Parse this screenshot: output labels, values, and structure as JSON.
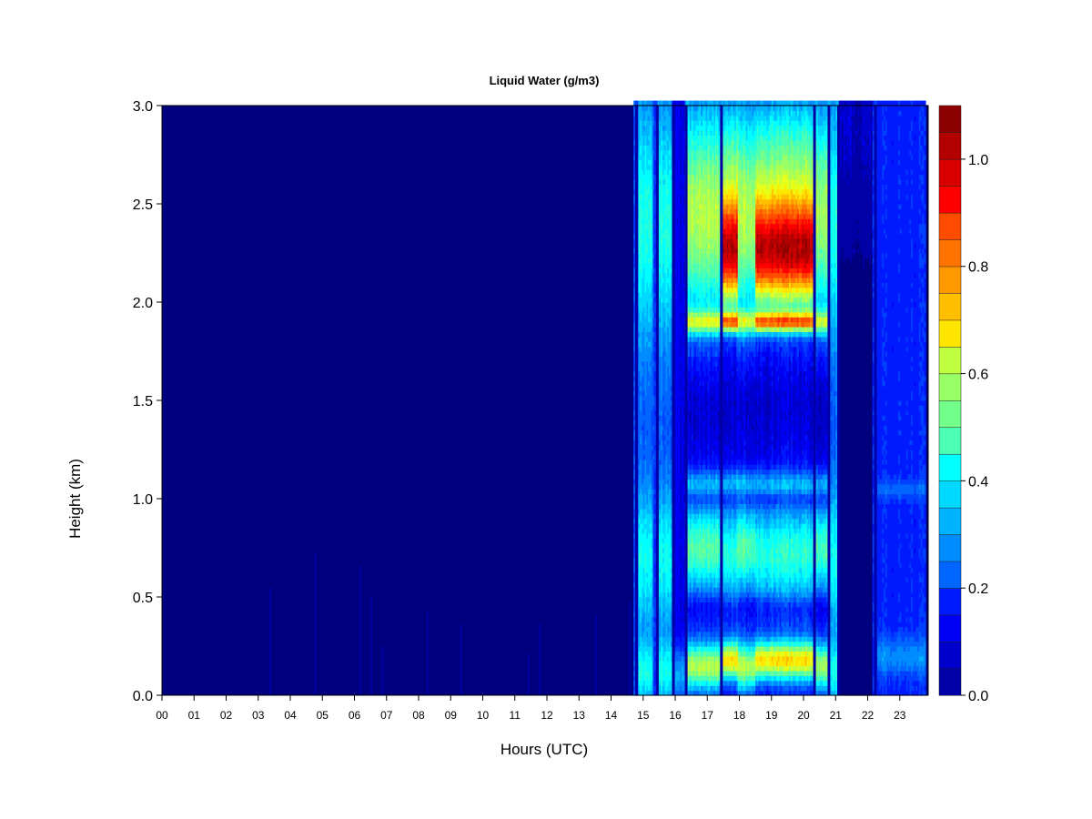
{
  "chart_data": {
    "type": "heatmap",
    "title": "Liquid Water (g/m3)",
    "xlabel": "Hours (UTC)",
    "ylabel": "Height (km)",
    "x_ticks": [
      "00",
      "01",
      "02",
      "03",
      "04",
      "05",
      "06",
      "07",
      "08",
      "09",
      "10",
      "11",
      "12",
      "13",
      "14",
      "15",
      "16",
      "17",
      "18",
      "19",
      "20",
      "21",
      "22",
      "23"
    ],
    "xlim": [
      0,
      24
    ],
    "y_ticks": [
      "0.0",
      "0.5",
      "1.0",
      "1.5",
      "2.0",
      "2.5",
      "3.0"
    ],
    "ylim": [
      0,
      3
    ],
    "colorbar": {
      "ticks": [
        "0.0",
        "0.2",
        "0.4",
        "0.6",
        "0.8",
        "1.0"
      ],
      "range": [
        0,
        1.1
      ],
      "levels": 22,
      "colors": [
        "#00007f",
        "#0000a6",
        "#0000cc",
        "#0000f3",
        "#001aff",
        "#0040ff",
        "#0066ff",
        "#008cff",
        "#00b3ff",
        "#00d9ff",
        "#00ffff",
        "#26ffd9",
        "#4cffb3",
        "#73ff8c",
        "#99ff66",
        "#bfff40",
        "#e6ff1a",
        "#ffe600",
        "#ffbf00",
        "#ff9900",
        "#ff7300",
        "#ff4c00",
        "#ff2600",
        "#ff0000",
        "#d90000",
        "#b30000",
        "#8c0000",
        "#7f0000"
      ]
    },
    "columns": [
      {
        "x0": 0.0,
        "x1": 14.7,
        "profile": "clear"
      },
      {
        "x0": 14.7,
        "x1": 14.85,
        "profile": "light"
      },
      {
        "x0": 14.85,
        "x1": 15.3,
        "profile": "cloud_moderate"
      },
      {
        "x0": 15.3,
        "x1": 15.45,
        "profile": "light"
      },
      {
        "x0": 15.45,
        "x1": 15.9,
        "profile": "cloud_moderate"
      },
      {
        "x0": 15.9,
        "x1": 16.3,
        "profile": "low_only"
      },
      {
        "x0": 16.3,
        "x1": 17.4,
        "profile": "cloud_strong"
      },
      {
        "x0": 17.4,
        "x1": 17.95,
        "profile": "cloud_peak"
      },
      {
        "x0": 17.95,
        "x1": 18.5,
        "profile": "cloud_strong"
      },
      {
        "x0": 18.5,
        "x1": 20.3,
        "profile": "cloud_peak"
      },
      {
        "x0": 20.3,
        "x1": 20.75,
        "profile": "cloud_strong"
      },
      {
        "x0": 20.75,
        "x1": 21.1,
        "profile": "cloud_moderate"
      },
      {
        "x0": 21.1,
        "x1": 22.15,
        "profile": "clear_upper_light"
      },
      {
        "x0": 22.15,
        "x1": 22.3,
        "profile": "light"
      },
      {
        "x0": 22.3,
        "x1": 23.8,
        "profile": "cloud_light"
      }
    ]
  }
}
